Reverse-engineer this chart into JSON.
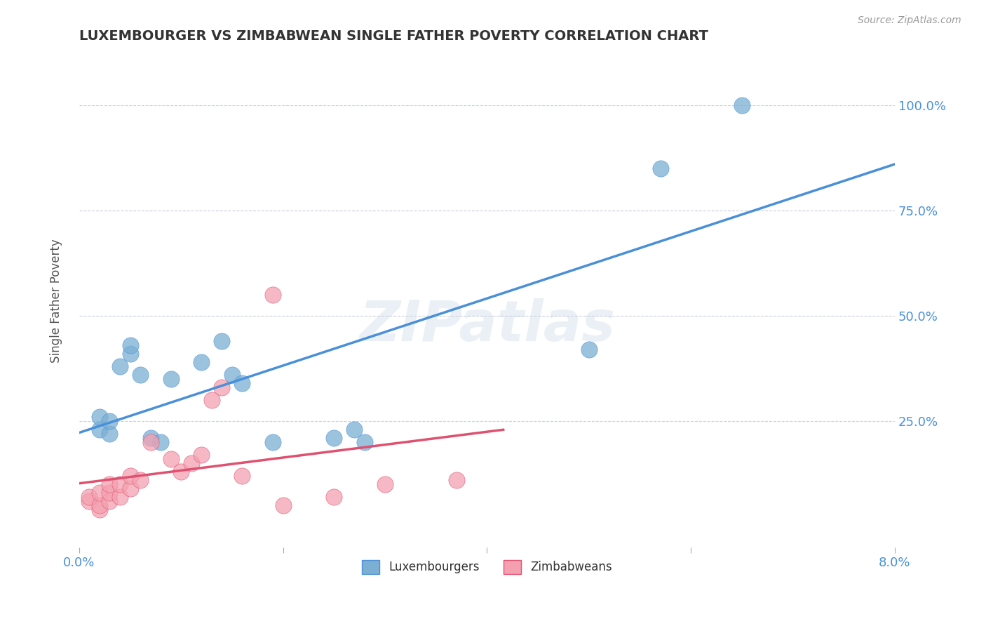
{
  "title": "LUXEMBOURGER VS ZIMBABWEAN SINGLE FATHER POVERTY CORRELATION CHART",
  "source": "Source: ZipAtlas.com",
  "xlabel": "",
  "ylabel": "Single Father Poverty",
  "xlim": [
    0.0,
    0.08
  ],
  "ylim": [
    -0.05,
    1.12
  ],
  "yticks": [
    0.0,
    0.25,
    0.5,
    0.75,
    1.0
  ],
  "ytick_labels": [
    "",
    "25.0%",
    "50.0%",
    "75.0%",
    "100.0%"
  ],
  "xticks": [
    0.0,
    0.02,
    0.04,
    0.06,
    0.08
  ],
  "xtick_labels": [
    "0.0%",
    "",
    "",
    "",
    "8.0%"
  ],
  "blue_color": "#7bafd4",
  "pink_color": "#f4a0b0",
  "blue_line_color": "#4a90d9",
  "pink_line_color": "#e05070",
  "dashed_line_color": "#b0b8c8",
  "watermark": "ZIPatlas",
  "blue_x": [
    0.002,
    0.002,
    0.003,
    0.003,
    0.004,
    0.005,
    0.005,
    0.006,
    0.007,
    0.008,
    0.009,
    0.012,
    0.014,
    0.015,
    0.016,
    0.019,
    0.025,
    0.027,
    0.028,
    0.05,
    0.057,
    0.065
  ],
  "blue_y": [
    0.23,
    0.26,
    0.22,
    0.25,
    0.38,
    0.41,
    0.43,
    0.36,
    0.21,
    0.2,
    0.35,
    0.39,
    0.44,
    0.36,
    0.34,
    0.2,
    0.21,
    0.23,
    0.2,
    0.42,
    0.85,
    1.0
  ],
  "pink_x": [
    0.001,
    0.001,
    0.002,
    0.002,
    0.002,
    0.003,
    0.003,
    0.003,
    0.004,
    0.004,
    0.005,
    0.005,
    0.006,
    0.007,
    0.009,
    0.01,
    0.011,
    0.012,
    0.013,
    0.014,
    0.016,
    0.019,
    0.02,
    0.025,
    0.03,
    0.037
  ],
  "pink_y": [
    0.06,
    0.07,
    0.04,
    0.05,
    0.08,
    0.06,
    0.08,
    0.1,
    0.07,
    0.1,
    0.09,
    0.12,
    0.11,
    0.2,
    0.16,
    0.13,
    0.15,
    0.17,
    0.3,
    0.33,
    0.12,
    0.55,
    0.05,
    0.07,
    0.1,
    0.11
  ],
  "title_color": "#333333",
  "axis_color": "#4a90d9",
  "grid_color": "#c8d0dc",
  "background_color": "#ffffff"
}
